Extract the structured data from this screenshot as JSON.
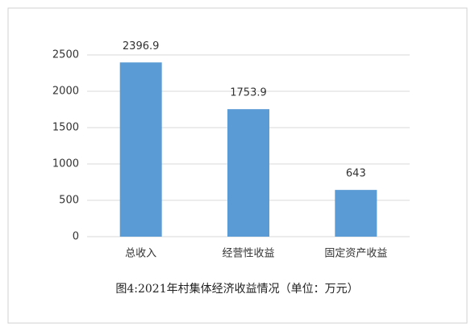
{
  "chart_data": {
    "type": "bar",
    "title": "图4:2021年村集体经济收益情况（单位：万元）",
    "categories": [
      "总收入",
      "经营性收益",
      "固定资产收益"
    ],
    "values": [
      2396.9,
      1753.9,
      643
    ],
    "color": "#5b9bd5",
    "ylim": [
      0,
      2500
    ],
    "yticks": [
      0,
      500,
      1000,
      1500,
      2000,
      2500
    ],
    "grid": true
  }
}
